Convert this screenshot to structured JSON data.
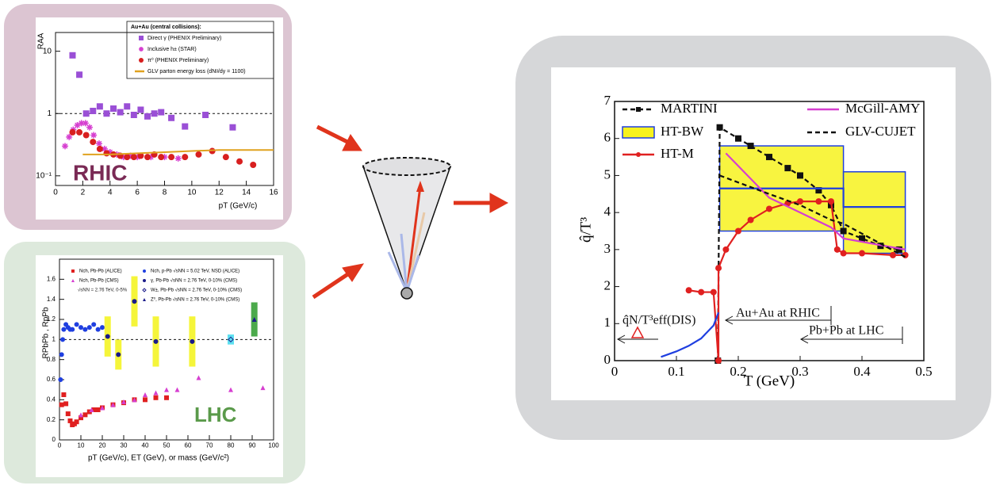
{
  "chart_data": [
    {
      "type": "scatter",
      "log_y": true,
      "legend_title": "Au+Au (central collisions):",
      "y_label": "RAA",
      "x_label": "pT (GeV/c)",
      "annotations": [
        "RHIC"
      ],
      "xlim": [
        0,
        16
      ],
      "xticks": [
        0,
        2,
        4,
        6,
        8,
        10,
        12,
        14,
        16
      ],
      "ylim": [
        0.07,
        20
      ],
      "yticks": [
        {
          "value": 0.1,
          "label": "10⁻¹"
        },
        1,
        10
      ],
      "hline": 1,
      "series": [
        {
          "name": "Direct γ (PHENIX Preliminary)",
          "color": "#9a4fd6",
          "marker": "square",
          "line": "none",
          "x": [
            1.25,
            1.75,
            2.25,
            2.75,
            3.25,
            3.75,
            4.25,
            4.75,
            5.25,
            5.75,
            6.25,
            6.75,
            7.25,
            7.75,
            8.5,
            9.5,
            11,
            13
          ],
          "values": [
            8.6,
            4.2,
            1.0,
            1.1,
            1.3,
            1.0,
            1.2,
            1.05,
            1.3,
            0.95,
            1.15,
            0.9,
            1.0,
            1.05,
            0.85,
            0.62,
            0.95,
            0.6
          ]
        },
        {
          "name": "Inclusive h± (STAR)",
          "color": "#d63fd0",
          "marker": "star",
          "line": "none",
          "x": [
            0.7,
            1.0,
            1.3,
            1.6,
            1.9,
            2.2,
            2.5,
            2.8,
            3.2,
            3.6,
            4.0,
            4.5,
            5.0,
            5.5,
            6.0,
            7.0,
            8.0,
            9.0
          ],
          "values": [
            0.3,
            0.42,
            0.55,
            0.65,
            0.7,
            0.7,
            0.6,
            0.45,
            0.33,
            0.27,
            0.24,
            0.22,
            0.2,
            0.21,
            0.2,
            0.2,
            0.2,
            0.19
          ]
        },
        {
          "name": "π⁰ (PHENIX Preliminary)",
          "color": "#d81f1f",
          "marker": "circle",
          "line": "none",
          "x": [
            1.25,
            1.75,
            2.25,
            2.75,
            3.25,
            3.75,
            4.25,
            4.75,
            5.25,
            5.75,
            6.25,
            6.75,
            7.25,
            7.75,
            8.5,
            9.5,
            10.5,
            11.5,
            12.5,
            13.5,
            14.5
          ],
          "values": [
            0.5,
            0.5,
            0.45,
            0.35,
            0.27,
            0.23,
            0.22,
            0.21,
            0.2,
            0.2,
            0.21,
            0.2,
            0.22,
            0.2,
            0.2,
            0.2,
            0.22,
            0.25,
            0.2,
            0.17,
            0.15
          ]
        },
        {
          "name": "GLV parton energy loss (dNᵍ/dy = 1100)",
          "color": "#e0a21f",
          "marker": "none",
          "line": "solid",
          "x": [
            2,
            4,
            6,
            8,
            10,
            12,
            14,
            16
          ],
          "values": [
            0.22,
            0.22,
            0.23,
            0.24,
            0.25,
            0.26,
            0.26,
            0.26
          ]
        }
      ]
    },
    {
      "type": "scatter",
      "y_label": "RPbPb , RpPb",
      "x_label": "pT (GeV/c), ET (GeV), or mass (GeV/c²)",
      "annotations": [
        "√sNN = 2.76 TeV, 0-5%",
        "LHC"
      ],
      "xlim": [
        0,
        100
      ],
      "xticks": [
        0,
        10,
        20,
        30,
        40,
        50,
        60,
        70,
        80,
        90,
        100
      ],
      "ylim": [
        0,
        1.8
      ],
      "yticks": [
        0,
        0.2,
        0.4,
        0.6,
        0.8,
        1,
        1.2,
        1.4,
        1.6
      ],
      "hline": 1,
      "series": [
        {
          "name": "Nch, Pb-Pb (ALICE)",
          "color": "#e02020",
          "marker": "square",
          "line": "none",
          "x": [
            1,
            2,
            3,
            4,
            5,
            6,
            7,
            8,
            10,
            12,
            14,
            16,
            18,
            20,
            25,
            30,
            35,
            40,
            45,
            50
          ],
          "values": [
            0.35,
            0.45,
            0.36,
            0.26,
            0.19,
            0.15,
            0.16,
            0.18,
            0.22,
            0.25,
            0.28,
            0.3,
            0.3,
            0.32,
            0.35,
            0.37,
            0.4,
            0.4,
            0.42,
            0.42
          ]
        },
        {
          "name": "Nch, Pb-Pb (CMS)",
          "color": "#d63fd0",
          "marker": "triangle",
          "line": "none",
          "x": [
            10,
            15,
            20,
            25,
            30,
            35,
            40,
            45,
            50,
            55,
            65,
            80,
            95
          ],
          "values": [
            0.25,
            0.3,
            0.32,
            0.35,
            0.38,
            0.4,
            0.45,
            0.47,
            0.5,
            0.5,
            0.62,
            0.5,
            0.52
          ]
        },
        {
          "name": "Nch, p-Pb √sNN = 5.02 TeV, NSD (ALICE)",
          "color": "#1f3fe0",
          "marker": "circle",
          "line": "none",
          "x": [
            0.5,
            1,
            1.5,
            2,
            3,
            4,
            5,
            6,
            8,
            10,
            12,
            14,
            16,
            18,
            20
          ],
          "values": [
            0.6,
            0.85,
            1.0,
            1.1,
            1.15,
            1.12,
            1.1,
            1.1,
            1.15,
            1.12,
            1.1,
            1.12,
            1.15,
            1.1,
            1.12
          ]
        },
        {
          "name": "γ, Pb-Pb √sNN = 2.76 TeV, 0-10% (CMS)",
          "color": "#1a1a8a",
          "marker": "circle",
          "line": "none",
          "box_color": "#f5f53a",
          "x": [
            22.5,
            27.5,
            35,
            45,
            62
          ],
          "values": [
            1.03,
            0.85,
            1.38,
            0.98,
            0.98
          ],
          "errors": [
            0.2,
            0.15,
            0.25,
            0.25,
            0.25
          ]
        },
        {
          "name": "W±, Pb-Pb √sNN = 2.76 TeV, 0-10% (CMS)",
          "color": "#1a1a8a",
          "marker": "diamond",
          "line": "none",
          "box_color": "#5ee0f0",
          "x": [
            80
          ],
          "values": [
            1.0
          ],
          "errors": [
            0.05
          ]
        },
        {
          "name": "Z⁰, Pb-Pb √sNN = 2.76 TeV, 0-10% (CMS)",
          "color": "#1a1a8a",
          "marker": "triangle",
          "line": "none",
          "box_color": "#4caa4c",
          "x": [
            91
          ],
          "values": [
            1.2
          ],
          "errors": [
            0.17
          ]
        }
      ]
    },
    {
      "type": "line",
      "y_label": "q̂/T³",
      "x_label": "T (GeV)",
      "annotations": [
        "q̂N/T³eff(DIS)",
        "Au+Au at RHIC",
        "Pb+Pb at LHC"
      ],
      "xlim": [
        0,
        0.5
      ],
      "xticks": [
        0,
        0.1,
        0.2,
        0.3,
        0.4,
        0.5
      ],
      "ylim": [
        0,
        7
      ],
      "yticks": [
        0,
        1,
        2,
        3,
        4,
        5,
        6,
        7
      ],
      "bands": {
        "color": "#f7f21e",
        "edge": "#1f3fe0",
        "x": [
          [
            0.17,
            0.37
          ],
          [
            0.37,
            0.47
          ]
        ],
        "y": [
          [
            3.5,
            5.8
          ],
          [
            2.9,
            5.1
          ]
        ]
      },
      "series": [
        {
          "name": "MARTINI",
          "color": "#111111",
          "marker": "square",
          "line": "dashed",
          "x": [
            0.167,
            0.17,
            0.2,
            0.22,
            0.25,
            0.28,
            0.3,
            0.33,
            0.35,
            0.37,
            0.4,
            0.43,
            0.46
          ],
          "values": [
            0,
            6.3,
            6.0,
            5.8,
            5.5,
            5.2,
            5.0,
            4.6,
            4.2,
            3.5,
            3.3,
            3.1,
            3.0
          ]
        },
        {
          "name": "HT-BW",
          "color": "#1f3fe0",
          "marker": "none",
          "line": "solid",
          "x": [
            0.17,
            0.37,
            0.37,
            0.47
          ],
          "values": [
            4.65,
            4.65,
            4.15,
            4.15
          ]
        },
        {
          "name": "HT-M",
          "color": "#e02020",
          "marker": "circle",
          "line": "solid",
          "x": [
            0.12,
            0.14,
            0.16,
            0.168,
            0.168,
            0.18,
            0.2,
            0.22,
            0.25,
            0.28,
            0.3,
            0.33,
            0.35,
            0.36,
            0.37,
            0.4,
            0.45,
            0.47
          ],
          "values": [
            1.9,
            1.85,
            1.85,
            0,
            2.5,
            3.0,
            3.5,
            3.8,
            4.1,
            4.25,
            4.3,
            4.3,
            4.3,
            3.0,
            2.9,
            2.9,
            2.85,
            2.85
          ]
        },
        {
          "name": "McGill-AMY",
          "color": "#d63fd0",
          "marker": "none",
          "line": "solid",
          "x": [
            0.18,
            0.25,
            0.3,
            0.35,
            0.37,
            0.47
          ],
          "values": [
            5.6,
            4.4,
            4.0,
            3.6,
            3.3,
            3.0
          ]
        },
        {
          "name": "GLV-CUJET",
          "color": "#111111",
          "marker": "none",
          "line": "dashed",
          "x": [
            0.17,
            0.25,
            0.3,
            0.35,
            0.37,
            0.47
          ],
          "values": [
            5.0,
            4.5,
            4.2,
            3.8,
            3.7,
            2.8
          ]
        },
        {
          "color": "#1f3fe0",
          "marker": "none",
          "line": "solid",
          "x": [
            0.075,
            0.1,
            0.12,
            0.14,
            0.16,
            0.168
          ],
          "values": [
            0.1,
            0.25,
            0.4,
            0.6,
            0.95,
            1.3
          ]
        }
      ]
    }
  ]
}
